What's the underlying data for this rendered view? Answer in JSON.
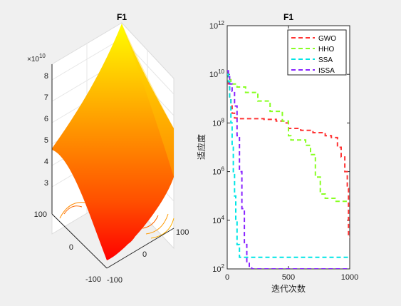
{
  "chart_data": [
    {
      "type": "surface",
      "title": "F1",
      "exponent_label": "×10",
      "exponent_power": "10",
      "z_ticks": [
        "3",
        "4",
        "5",
        "6",
        "7",
        "8"
      ],
      "x_ticks": [
        "-100",
        "0",
        "100"
      ],
      "y_ticks": [
        "100",
        "0",
        "-100"
      ],
      "colormap": [
        "#ffff00",
        "#ff9a00",
        "#ff5500",
        "#ff0000"
      ]
    },
    {
      "type": "line",
      "title": "F1",
      "xlabel": "迭代次数",
      "ylabel": "适应度",
      "xlim": [
        0,
        1000
      ],
      "ylim": [
        100,
        1000000000000
      ],
      "y_scale": "log",
      "x_ticks": [
        0,
        500,
        1000
      ],
      "y_tick_powers": [
        2,
        4,
        6,
        8,
        10,
        12
      ],
      "legend_position": "top-right",
      "series": [
        {
          "name": "GWO",
          "color": "#ff3333",
          "x": [
            0,
            10,
            20,
            30,
            40,
            60,
            80,
            120,
            200,
            300,
            400,
            470,
            500,
            600,
            700,
            760,
            800,
            850,
            900,
            930,
            960,
            980,
            990,
            1000
          ],
          "y": [
            10000000000.0,
            3000000000.0,
            1000000000.0,
            500000000.0,
            250000000.0,
            160000000.0,
            150000000.0,
            150000000.0,
            150000000.0,
            140000000.0,
            120000000.0,
            100000000.0,
            60000000.0,
            50000000.0,
            40000000.0,
            40000000.0,
            30000000.0,
            25000000.0,
            10000000.0,
            4000000.0,
            1000000.0,
            200000.0,
            2000.0,
            2000.0
          ]
        },
        {
          "name": "HHO",
          "color": "#88ff22",
          "x": [
            0,
            10,
            30,
            80,
            150,
            250,
            350,
            450,
            500,
            520,
            560,
            600,
            640,
            680,
            720,
            760,
            800,
            880,
            1000
          ],
          "y": [
            10000000000.0,
            6000000000.0,
            4000000000.0,
            3000000000.0,
            1800000000.0,
            800000000.0,
            300000000.0,
            120000000.0,
            30000000.0,
            20000000.0,
            20000000.0,
            20000000.0,
            12000000.0,
            5000000.0,
            600000.0,
            120000.0,
            80000.0,
            60000.0,
            60000.0
          ]
        },
        {
          "name": "SSA",
          "color": "#00e5e5",
          "x": [
            0,
            10,
            20,
            30,
            40,
            50,
            60,
            70,
            80,
            100,
            120,
            150,
            200,
            300,
            500,
            700,
            1000
          ],
          "y": [
            10000000000.0,
            5000000000.0,
            1000000000.0,
            100000000.0,
            10000000.0,
            1000000.0,
            100000.0,
            10000.0,
            1000.0,
            300,
            300,
            300,
            300,
            300,
            300,
            300,
            300
          ]
        },
        {
          "name": "ISSA",
          "color": "#8822ff",
          "x": [
            0,
            10,
            20,
            40,
            60,
            80,
            100,
            120,
            140,
            160,
            180,
            200,
            300,
            500,
            700,
            1000
          ],
          "y": [
            14000000000.0,
            8000000000.0,
            4000000000.0,
            2000000000.0,
            500000000.0,
            30000000.0,
            1000000.0,
            30000.0,
            1000.0,
            200,
            110,
            100,
            100,
            100,
            100,
            100
          ]
        }
      ]
    }
  ]
}
